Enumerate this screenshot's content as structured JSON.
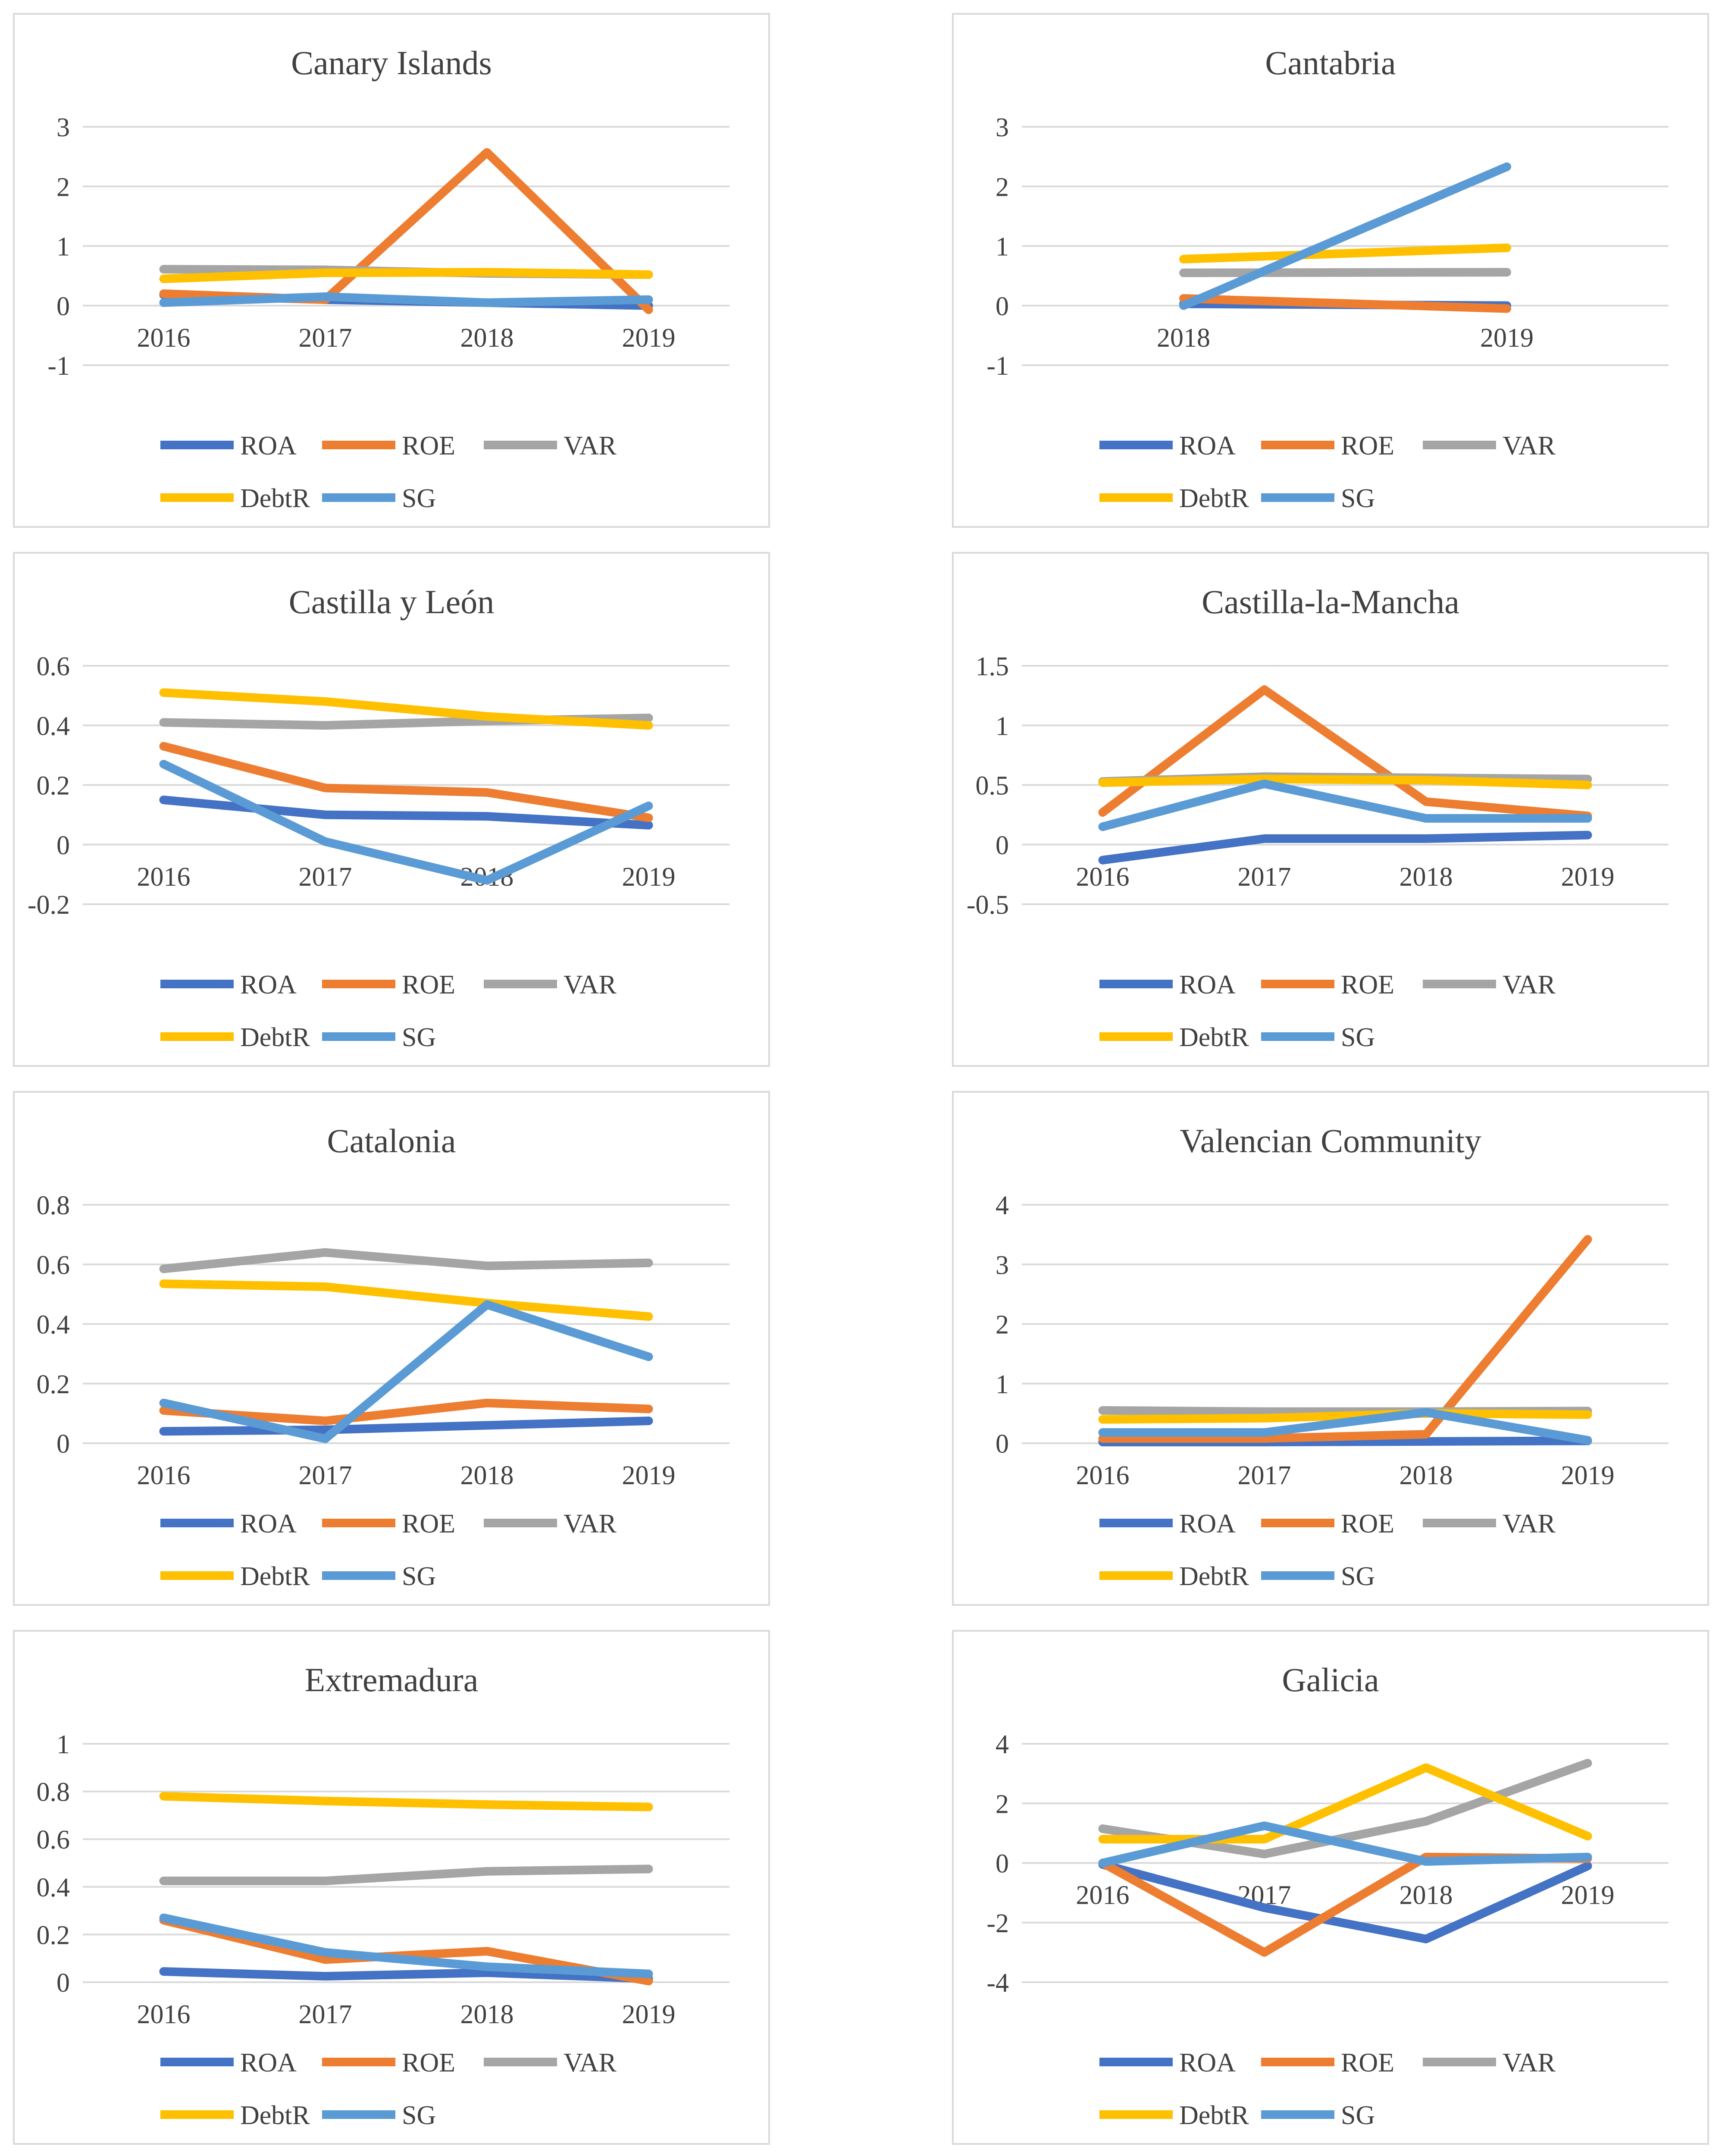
{
  "legend_labels": [
    "ROA",
    "ROE",
    "VAR",
    "DebtR",
    "SG"
  ],
  "series_colors": {
    "ROA": "#4472C4",
    "ROE": "#ED7D31",
    "VAR": "#A5A5A5",
    "DebtR": "#FFC000",
    "SG": "#5B9BD5"
  },
  "chart_data": [
    {
      "type": "line",
      "title": "Canary Islands",
      "categories": [
        "2016",
        "2017",
        "2018",
        "2019"
      ],
      "ylim": [
        -1,
        3
      ],
      "yticks": [
        "3",
        "2",
        "1",
        "0",
        "-1"
      ],
      "grid": true,
      "legend": "bottom",
      "series": [
        {
          "name": "ROA",
          "values": [
            0.18,
            0.1,
            0.05,
            0.0
          ]
        },
        {
          "name": "ROE",
          "values": [
            0.2,
            0.1,
            2.57,
            -0.07
          ]
        },
        {
          "name": "VAR",
          "values": [
            0.61,
            0.6,
            0.54,
            0.52
          ]
        },
        {
          "name": "DebtR",
          "values": [
            0.45,
            0.55,
            0.56,
            0.52
          ]
        },
        {
          "name": "SG",
          "values": [
            0.05,
            0.15,
            0.05,
            0.1
          ]
        }
      ]
    },
    {
      "type": "line",
      "title": "Cantabria",
      "categories": [
        "2018",
        "2019"
      ],
      "ylim": [
        -1,
        3
      ],
      "yticks": [
        "3",
        "2",
        "1",
        "0",
        "-1"
      ],
      "grid": true,
      "legend": "bottom",
      "series": [
        {
          "name": "ROA",
          "values": [
            0.03,
            0.0
          ]
        },
        {
          "name": "ROE",
          "values": [
            0.12,
            -0.05
          ]
        },
        {
          "name": "VAR",
          "values": [
            0.55,
            0.56
          ]
        },
        {
          "name": "DebtR",
          "values": [
            0.78,
            0.97
          ]
        },
        {
          "name": "SG",
          "values": [
            0.0,
            2.33
          ]
        }
      ]
    },
    {
      "type": "line",
      "title": "Castilla y León",
      "categories": [
        "2016",
        "2017",
        "2018",
        "2019"
      ],
      "ylim": [
        -0.2,
        0.6
      ],
      "yticks": [
        "0.6",
        "0.4",
        "0.2",
        "0",
        "-0.2"
      ],
      "grid": true,
      "legend": "bottom",
      "series": [
        {
          "name": "ROA",
          "values": [
            0.15,
            0.1,
            0.095,
            0.065
          ]
        },
        {
          "name": "ROE",
          "values": [
            0.33,
            0.19,
            0.175,
            0.09
          ]
        },
        {
          "name": "VAR",
          "values": [
            0.41,
            0.4,
            0.415,
            0.425
          ]
        },
        {
          "name": "DebtR",
          "values": [
            0.51,
            0.48,
            0.43,
            0.4
          ]
        },
        {
          "name": "SG",
          "values": [
            0.27,
            0.01,
            -0.12,
            0.13
          ]
        }
      ]
    },
    {
      "type": "line",
      "title": "Castilla-la-Mancha",
      "categories": [
        "2016",
        "2017",
        "2018",
        "2019"
      ],
      "ylim": [
        -0.5,
        1.5
      ],
      "yticks": [
        "1.5",
        "1",
        "0.5",
        "0",
        "-0.5"
      ],
      "grid": true,
      "legend": "bottom",
      "series": [
        {
          "name": "ROA",
          "values": [
            -0.13,
            0.05,
            0.05,
            0.08
          ]
        },
        {
          "name": "ROE",
          "values": [
            0.27,
            1.3,
            0.36,
            0.24
          ]
        },
        {
          "name": "VAR",
          "values": [
            0.53,
            0.57,
            0.56,
            0.55
          ]
        },
        {
          "name": "DebtR",
          "values": [
            0.52,
            0.55,
            0.54,
            0.5
          ]
        },
        {
          "name": "SG",
          "values": [
            0.15,
            0.51,
            0.22,
            0.22
          ]
        }
      ]
    },
    {
      "type": "line",
      "title": "Catalonia",
      "categories": [
        "2016",
        "2017",
        "2018",
        "2019"
      ],
      "ylim": [
        0,
        0.8
      ],
      "yticks": [
        "0.8",
        "0.6",
        "0.4",
        "0.2",
        "0"
      ],
      "grid": true,
      "legend": "bottom",
      "series": [
        {
          "name": "ROA",
          "values": [
            0.04,
            0.045,
            0.06,
            0.075
          ]
        },
        {
          "name": "ROE",
          "values": [
            0.11,
            0.075,
            0.135,
            0.115
          ]
        },
        {
          "name": "VAR",
          "values": [
            0.585,
            0.64,
            0.595,
            0.605
          ]
        },
        {
          "name": "DebtR",
          "values": [
            0.535,
            0.525,
            0.47,
            0.425
          ]
        },
        {
          "name": "SG",
          "values": [
            0.135,
            0.015,
            0.465,
            0.29
          ]
        }
      ]
    },
    {
      "type": "line",
      "title": "Valencian Community",
      "categories": [
        "2016",
        "2017",
        "2018",
        "2019"
      ],
      "ylim": [
        0,
        4
      ],
      "yticks": [
        "4",
        "3",
        "2",
        "1",
        "0"
      ],
      "grid": true,
      "legend": "bottom",
      "series": [
        {
          "name": "ROA",
          "values": [
            0.02,
            0.02,
            0.03,
            0.04
          ]
        },
        {
          "name": "ROE",
          "values": [
            0.08,
            0.08,
            0.15,
            3.42
          ]
        },
        {
          "name": "VAR",
          "values": [
            0.55,
            0.53,
            0.53,
            0.54
          ]
        },
        {
          "name": "DebtR",
          "values": [
            0.4,
            0.42,
            0.5,
            0.48
          ]
        },
        {
          "name": "SG",
          "values": [
            0.18,
            0.18,
            0.52,
            0.05
          ]
        }
      ]
    },
    {
      "type": "line",
      "title": "Extremadura",
      "categories": [
        "2016",
        "2017",
        "2018",
        "2019"
      ],
      "ylim": [
        0,
        1
      ],
      "yticks": [
        "1",
        "0.8",
        "0.6",
        "0.4",
        "0.2",
        "0"
      ],
      "grid": true,
      "legend": "bottom",
      "series": [
        {
          "name": "ROA",
          "values": [
            0.045,
            0.025,
            0.04,
            0.015
          ]
        },
        {
          "name": "ROE",
          "values": [
            0.26,
            0.095,
            0.13,
            0.005
          ]
        },
        {
          "name": "VAR",
          "values": [
            0.425,
            0.425,
            0.465,
            0.475
          ]
        },
        {
          "name": "DebtR",
          "values": [
            0.78,
            0.76,
            0.745,
            0.735
          ]
        },
        {
          "name": "SG",
          "values": [
            0.27,
            0.125,
            0.065,
            0.035
          ]
        }
      ]
    },
    {
      "type": "line",
      "title": "Galicia",
      "categories": [
        "2016",
        "2017",
        "2018",
        "2019"
      ],
      "ylim": [
        -4,
        4
      ],
      "yticks": [
        "4",
        "2",
        "0",
        "-2",
        "-4"
      ],
      "grid": true,
      "legend": "bottom",
      "series": [
        {
          "name": "ROA",
          "values": [
            -0.05,
            -1.5,
            -2.55,
            -0.1
          ]
        },
        {
          "name": "ROE",
          "values": [
            0.0,
            -3.0,
            0.2,
            0.15
          ]
        },
        {
          "name": "VAR",
          "values": [
            1.15,
            0.3,
            1.4,
            3.35
          ]
        },
        {
          "name": "DebtR",
          "values": [
            0.8,
            0.8,
            3.2,
            0.9
          ]
        },
        {
          "name": "SG",
          "values": [
            0.0,
            1.25,
            0.05,
            0.2
          ]
        }
      ]
    }
  ]
}
